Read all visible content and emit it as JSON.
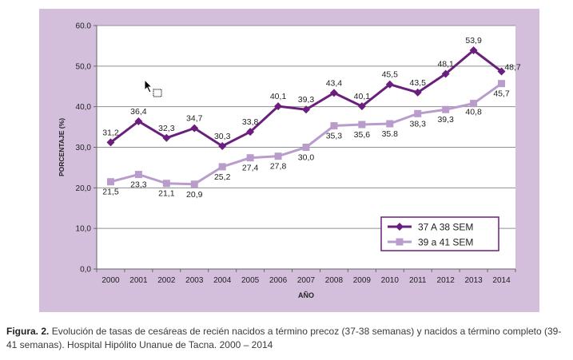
{
  "chart_data": {
    "type": "line",
    "xlabel": "AÑO",
    "ylabel": "PORCENTAJE (%)",
    "x": [
      "2000",
      "2001",
      "2002",
      "2003",
      "2004",
      "2005",
      "2006",
      "2007",
      "2008",
      "2009",
      "2010",
      "2011",
      "2012",
      "2013",
      "2014"
    ],
    "ylim": [
      0,
      60
    ],
    "yticks": [
      "0,0",
      "10,0",
      "20,0",
      "30,0",
      "40,0",
      "50,0",
      "60.0"
    ],
    "grid": true,
    "legend_position": "bottom-right",
    "series": [
      {
        "name": "37 A 38 SEM",
        "color": "#6b1f7d",
        "marker": "diamond",
        "values": [
          31.2,
          36.4,
          32.3,
          34.7,
          30.3,
          33.8,
          40.1,
          39.3,
          43.4,
          40.1,
          45.5,
          43.5,
          48.1,
          53.9,
          48.7
        ],
        "labels": [
          "31,2",
          "36,4",
          "32,3",
          "34,7",
          "30,3",
          "33,8",
          "40,1",
          "39,3",
          "43,4",
          "40,1",
          "45,5",
          "43,5",
          "48,1",
          "53,9",
          "48,7"
        ]
      },
      {
        "name": "39 a 41 SEM",
        "color": "#b99ccb",
        "marker": "square",
        "values": [
          21.5,
          23.3,
          21.1,
          20.9,
          25.2,
          27.4,
          27.8,
          30.0,
          35.3,
          35.6,
          35.8,
          38.3,
          39.3,
          40.8,
          45.7
        ],
        "labels": [
          "21,5",
          "23,3",
          "21,1",
          "20,9",
          "25,2",
          "27,4",
          "27,8",
          "30,0",
          "35,3",
          "35,6",
          "35.8",
          "38,3",
          "39,3",
          "40,8",
          "45,7"
        ]
      }
    ]
  },
  "caption": {
    "label": "Figura. 2.",
    "text": "Evolución de tasas de cesáreas de recién nacidos a término precoz (37-38 semanas) y nacidos a término completo (39-41 semanas). Hospital Hipólito Unanue de Tacna. 2000 – 2014"
  }
}
